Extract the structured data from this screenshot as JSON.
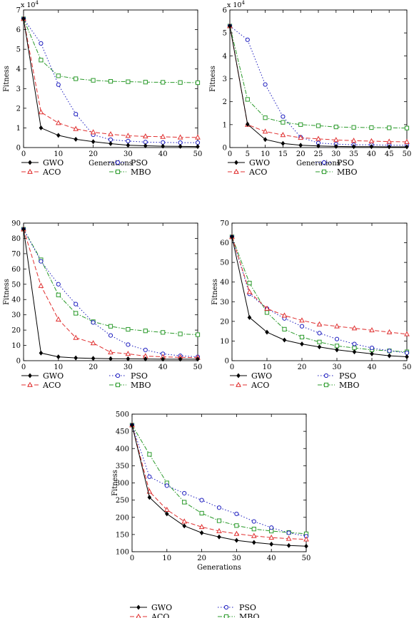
{
  "legend_labels": {
    "gwo": "GWO",
    "pso": "PSO",
    "aco": "ACO",
    "mbo": "MBO"
  },
  "series_colors": {
    "gwo": "#000000",
    "pso": "#1f1fbf",
    "aco": "#e03030",
    "mbo": "#2a9a2a"
  },
  "chart_data": [
    {
      "type": "line",
      "xlabel": "Generations",
      "ylabel": "Fitness",
      "y_scale_note": "x 10^4",
      "y_multiplier": 10000,
      "xlim": [
        0,
        50
      ],
      "ylim": [
        0,
        7
      ],
      "xticks": [
        0,
        10,
        20,
        30,
        40,
        50
      ],
      "yticks": [
        0,
        1,
        2,
        3,
        4,
        5,
        6,
        7
      ],
      "grid": false,
      "legend": "below",
      "x": [
        0,
        5,
        10,
        15,
        20,
        25,
        30,
        35,
        40,
        45,
        50
      ],
      "series": [
        {
          "name": "GWO",
          "values": [
            6.55,
            1.0,
            0.62,
            0.42,
            0.3,
            0.2,
            0.12,
            0.09,
            0.07,
            0.06,
            0.05
          ]
        },
        {
          "name": "PSO",
          "values": [
            6.55,
            5.3,
            3.2,
            1.7,
            0.65,
            0.4,
            0.33,
            0.28,
            0.26,
            0.25,
            0.25
          ]
        },
        {
          "name": "ACO",
          "values": [
            6.55,
            1.8,
            1.25,
            0.95,
            0.78,
            0.68,
            0.6,
            0.57,
            0.55,
            0.52,
            0.52
          ]
        },
        {
          "name": "MBO",
          "values": [
            6.55,
            4.45,
            3.65,
            3.5,
            3.42,
            3.37,
            3.35,
            3.33,
            3.32,
            3.31,
            3.3
          ]
        }
      ]
    },
    {
      "type": "line",
      "xlabel": "Generations",
      "ylabel": "Fitness",
      "y_scale_note": "x 10^4",
      "y_multiplier": 10000,
      "xlim": [
        0,
        50
      ],
      "ylim": [
        0,
        6
      ],
      "xticks": [
        0,
        5,
        10,
        15,
        20,
        25,
        30,
        35,
        40,
        45,
        50
      ],
      "yticks": [
        0,
        1,
        2,
        3,
        4,
        5,
        6
      ],
      "grid": false,
      "legend": "below",
      "x": [
        0,
        5,
        10,
        15,
        20,
        25,
        30,
        35,
        40,
        45,
        50
      ],
      "series": [
        {
          "name": "GWO",
          "values": [
            5.3,
            1.02,
            0.35,
            0.18,
            0.1,
            0.07,
            0.05,
            0.04,
            0.04,
            0.03,
            0.03
          ]
        },
        {
          "name": "PSO",
          "values": [
            5.3,
            4.7,
            2.75,
            1.35,
            0.45,
            0.2,
            0.15,
            0.12,
            0.12,
            0.1,
            0.1
          ]
        },
        {
          "name": "ACO",
          "values": [
            5.3,
            1.0,
            0.7,
            0.55,
            0.43,
            0.38,
            0.33,
            0.3,
            0.28,
            0.26,
            0.25
          ]
        },
        {
          "name": "MBO",
          "values": [
            5.3,
            2.1,
            1.3,
            1.1,
            1.0,
            0.95,
            0.9,
            0.88,
            0.87,
            0.86,
            0.85
          ]
        }
      ]
    },
    {
      "type": "line",
      "xlabel": "",
      "ylabel": "Fitness",
      "xlim": [
        0,
        50
      ],
      "ylim": [
        0,
        90
      ],
      "xticks": [
        0,
        10,
        20,
        30,
        40,
        50
      ],
      "yticks": [
        0,
        10,
        20,
        30,
        40,
        50,
        60,
        70,
        80,
        90
      ],
      "grid": false,
      "legend": "below",
      "x": [
        0,
        5,
        10,
        15,
        20,
        25,
        30,
        35,
        40,
        45,
        50
      ],
      "series": [
        {
          "name": "GWO",
          "values": [
            86,
            5,
            2.5,
            1.8,
            1.5,
            1.3,
            1.2,
            1.1,
            1.0,
            1.0,
            1.0
          ]
        },
        {
          "name": "PSO",
          "values": [
            86,
            65,
            50,
            37,
            25,
            16.5,
            10.5,
            7,
            4.5,
            3.2,
            2.5
          ]
        },
        {
          "name": "ACO",
          "values": [
            86,
            49,
            27,
            15,
            11.5,
            5.5,
            4.5,
            3.0,
            2.5,
            2.2,
            2.0
          ]
        },
        {
          "name": "MBO",
          "values": [
            86,
            66,
            43,
            31,
            25.5,
            22.5,
            20.5,
            19.5,
            18.5,
            17.5,
            17
          ]
        }
      ]
    },
    {
      "type": "line",
      "xlabel": "",
      "ylabel": "Fitness",
      "xlim": [
        0,
        50
      ],
      "ylim": [
        0,
        70
      ],
      "xticks": [
        0,
        10,
        20,
        30,
        40,
        50
      ],
      "yticks": [
        0,
        10,
        20,
        30,
        40,
        50,
        60,
        70
      ],
      "grid": false,
      "legend": "below",
      "x": [
        0,
        5,
        10,
        15,
        20,
        25,
        30,
        35,
        40,
        45,
        50
      ],
      "series": [
        {
          "name": "GWO",
          "values": [
            63,
            22,
            14.5,
            10.5,
            8.5,
            7.0,
            5.5,
            4.5,
            3.5,
            2.5,
            2.0
          ]
        },
        {
          "name": "PSO",
          "values": [
            63,
            34,
            26.5,
            21.5,
            17.5,
            14,
            11,
            8.5,
            6.5,
            5.0,
            4.0
          ]
        },
        {
          "name": "ACO",
          "values": [
            63,
            35,
            26.5,
            23,
            20.5,
            18.5,
            17.5,
            16.5,
            15.5,
            14.5,
            13.5
          ]
        },
        {
          "name": "MBO",
          "values": [
            63,
            39.5,
            24.5,
            16,
            12,
            9.5,
            7.5,
            6.5,
            5.5,
            5.0,
            4.5
          ]
        }
      ]
    },
    {
      "type": "line",
      "xlabel": "Generations",
      "ylabel": "Fitness",
      "xlim": [
        0,
        50
      ],
      "ylim": [
        100,
        500
      ],
      "xticks": [
        0,
        10,
        20,
        30,
        40,
        50
      ],
      "yticks": [
        100,
        150,
        200,
        250,
        300,
        350,
        400,
        450,
        500
      ],
      "grid": false,
      "legend": "below",
      "x": [
        0,
        5,
        10,
        15,
        20,
        25,
        30,
        35,
        40,
        45,
        50
      ],
      "series": [
        {
          "name": "GWO",
          "values": [
            468,
            258,
            210,
            175,
            155,
            143,
            133,
            127,
            122,
            118,
            116
          ]
        },
        {
          "name": "PSO",
          "values": [
            468,
            318,
            292,
            270,
            250,
            228,
            210,
            188,
            170,
            155,
            145
          ]
        },
        {
          "name": "ACO",
          "values": [
            468,
            275,
            222,
            188,
            172,
            160,
            152,
            146,
            141,
            138,
            136
          ]
        },
        {
          "name": "MBO",
          "values": [
            468,
            383,
            300,
            244,
            212,
            190,
            176,
            166,
            160,
            156,
            152
          ]
        }
      ]
    }
  ]
}
